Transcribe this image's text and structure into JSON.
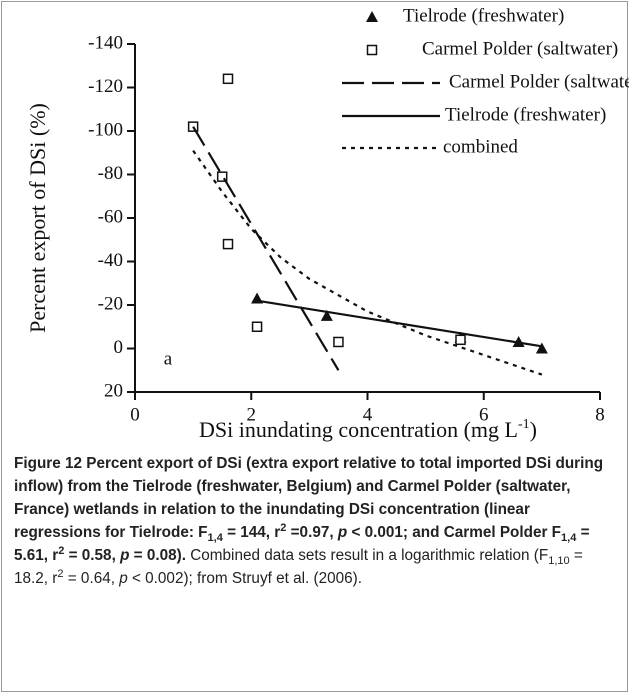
{
  "chart_data": {
    "type": "scatter",
    "ylabel": "Percent export of DSi (%)",
    "xlabel": [
      "DSi inundating concentration (mg L",
      "-1",
      ")"
    ],
    "xlim": [
      0,
      8
    ],
    "xticks": [
      0,
      2,
      4,
      6,
      8
    ],
    "ylim": [
      20,
      -140
    ],
    "yticks": [
      -140,
      -120,
      -100,
      -80,
      -60,
      -40,
      -20,
      0,
      20
    ],
    "annotations": [
      "a"
    ],
    "series": [
      {
        "name": "Tielrode (freshwater)",
        "color": "#111111",
        "marker": "triangle",
        "x": [
          2.1,
          3.3,
          5.6,
          6.6,
          7.0
        ],
        "values": [
          -23,
          -15,
          -5,
          -3,
          0
        ]
      },
      {
        "name": "Carmel Polder (saltwater)",
        "color": "#111111",
        "marker": "square",
        "x": [
          1.0,
          1.6,
          1.5,
          1.6,
          2.1,
          3.5,
          5.6
        ],
        "values": [
          -102,
          -124,
          -79,
          -48,
          -10,
          -3,
          -4
        ]
      },
      {
        "name": "Carmel Polder (saltwater)",
        "color": "#111111",
        "line": "dashed",
        "x": [
          1.0,
          3.5
        ],
        "values": [
          -102,
          10
        ]
      },
      {
        "name": "Tielrode (freshwater)",
        "color": "#111111",
        "line": "solid",
        "x": [
          2.1,
          7.0
        ],
        "values": [
          -22,
          -1
        ]
      },
      {
        "name": "combined",
        "color": "#111111",
        "line": "dotted",
        "x": [
          1.0,
          1.5,
          2.0,
          2.5,
          3.0,
          4.0,
          5.0,
          6.0,
          7.0
        ],
        "values": [
          -91,
          -72,
          -55,
          -42,
          -32,
          -17,
          -6,
          3,
          12
        ]
      }
    ]
  },
  "caption": [
    {
      "text": "Figure 12",
      "bold": true
    },
    {
      "text": " Percent export of DSi (extra export relative to total imported DSi during inflow) from the Tielrode (freshwater, Belgium) and Carmel Polder (saltwater, France) wetlands in relation to the inundating DSi concentration (linear regressions for Tielrode: F",
      "bold": true
    },
    {
      "text": "1,4",
      "bold": true,
      "script": "sub"
    },
    {
      "text": " = 144, r",
      "bold": true
    },
    {
      "text": "2",
      "bold": true,
      "script": "sup"
    },
    {
      "text": " =0.97, ",
      "bold": true
    },
    {
      "text": "p",
      "bold": true,
      "italic": true
    },
    {
      "text": " < 0.001; and Carmel Polder F",
      "bold": true
    },
    {
      "text": "1,4",
      "bold": true,
      "script": "sub"
    },
    {
      "text": " = 5.61, r",
      "bold": true
    },
    {
      "text": "2",
      "bold": true,
      "script": "sup"
    },
    {
      "text": " = 0.58, ",
      "bold": true
    },
    {
      "text": "p",
      "bold": true,
      "italic": true
    },
    {
      "text": " = 0.08).",
      "bold": true
    },
    {
      "text": " Combined data sets result in a logarithmic relation (F"
    },
    {
      "text": "1,10",
      "script": "sub"
    },
    {
      "text": " = 18.2, r"
    },
    {
      "text": "2",
      "script": "sup"
    },
    {
      "text": " = 0.64, "
    },
    {
      "text": "p",
      "italic": true
    },
    {
      "text": " < 0.002); from Struyf et al. (2006)."
    }
  ]
}
